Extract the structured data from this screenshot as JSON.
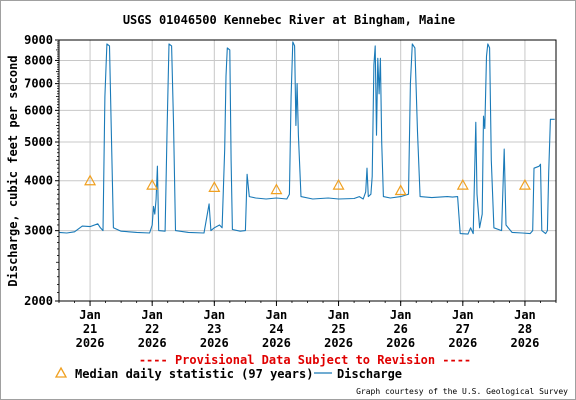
{
  "chart_data": {
    "type": "line",
    "title": "USGS 01046500 Kennebec River at Bingham, Maine",
    "ylabel": "Discharge, cubic feet per second",
    "xlabel": "",
    "y_scale": "log",
    "ylim": [
      2000,
      9000
    ],
    "y_ticks": [
      {
        "value": 2000,
        "label": "2000"
      },
      {
        "value": 3000,
        "label": "3000"
      },
      {
        "value": 4000,
        "label": "4000"
      },
      {
        "value": 5000,
        "label": "5000"
      },
      {
        "value": 6000,
        "label": "6000"
      },
      {
        "value": 7000,
        "label": "7000"
      },
      {
        "value": 8000,
        "label": "8000"
      },
      {
        "value": 9000,
        "label": "9000"
      }
    ],
    "xlim": [
      "2026-01-20 12:00",
      "2026-01-28 12:00"
    ],
    "x_ticks": [
      {
        "value": "2026-01-21",
        "month": "Jan",
        "day": "21",
        "year": "2026"
      },
      {
        "value": "2026-01-22",
        "month": "Jan",
        "day": "22",
        "year": "2026"
      },
      {
        "value": "2026-01-23",
        "month": "Jan",
        "day": "23",
        "year": "2026"
      },
      {
        "value": "2026-01-24",
        "month": "Jan",
        "day": "24",
        "year": "2026"
      },
      {
        "value": "2026-01-25",
        "month": "Jan",
        "day": "25",
        "year": "2026"
      },
      {
        "value": "2026-01-26",
        "month": "Jan",
        "day": "26",
        "year": "2026"
      },
      {
        "value": "2026-01-27",
        "month": "Jan",
        "day": "27",
        "year": "2026"
      },
      {
        "value": "2026-01-28",
        "month": "Jan",
        "day": "28",
        "year": "2026"
      }
    ],
    "grid": true,
    "series": [
      {
        "name": "Discharge",
        "color": "#1a7ab8",
        "points": [
          [
            "2026-01-20 12:00",
            2970
          ],
          [
            "2026-01-20 15:00",
            2960
          ],
          [
            "2026-01-20 18:00",
            2980
          ],
          [
            "2026-01-20 21:00",
            3080
          ],
          [
            "2026-01-21 00:00",
            3070
          ],
          [
            "2026-01-21 03:00",
            3120
          ],
          [
            "2026-01-21 04:00",
            3050
          ],
          [
            "2026-01-21 05:00",
            3000
          ],
          [
            "2026-01-21 05:45",
            6500
          ],
          [
            "2026-01-21 06:30",
            8800
          ],
          [
            "2026-01-21 07:30",
            8700
          ],
          [
            "2026-01-21 08:15",
            5200
          ],
          [
            "2026-01-21 09:00",
            3050
          ],
          [
            "2026-01-21 12:00",
            2990
          ],
          [
            "2026-01-21 18:00",
            2970
          ],
          [
            "2026-01-21 23:00",
            2960
          ],
          [
            "2026-01-22 00:00",
            3100
          ],
          [
            "2026-01-22 00:30",
            3450
          ],
          [
            "2026-01-22 01:00",
            3300
          ],
          [
            "2026-01-22 01:30",
            3600
          ],
          [
            "2026-01-22 02:00",
            4350
          ],
          [
            "2026-01-22 02:30",
            3000
          ],
          [
            "2026-01-22 05:00",
            2990
          ],
          [
            "2026-01-22 05:45",
            5400
          ],
          [
            "2026-01-22 06:30",
            8800
          ],
          [
            "2026-01-22 07:30",
            8700
          ],
          [
            "2026-01-22 08:15",
            5600
          ],
          [
            "2026-01-22 09:00",
            3000
          ],
          [
            "2026-01-22 14:00",
            2970
          ],
          [
            "2026-01-22 20:00",
            2960
          ],
          [
            "2026-01-22 22:00",
            3500
          ],
          [
            "2026-01-22 22:40",
            3000
          ],
          [
            "2026-01-23 00:00",
            3050
          ],
          [
            "2026-01-23 02:00",
            3100
          ],
          [
            "2026-01-23 03:00",
            3050
          ],
          [
            "2026-01-23 04:00",
            4800
          ],
          [
            "2026-01-23 04:30",
            7300
          ],
          [
            "2026-01-23 05:00",
            8600
          ],
          [
            "2026-01-23 06:00",
            8500
          ],
          [
            "2026-01-23 06:30",
            4500
          ],
          [
            "2026-01-23 07:00",
            3020
          ],
          [
            "2026-01-23 10:00",
            2990
          ],
          [
            "2026-01-23 12:00",
            3000
          ],
          [
            "2026-01-23 12:40",
            4150
          ],
          [
            "2026-01-23 13:30",
            3650
          ],
          [
            "2026-01-23 16:00",
            3620
          ],
          [
            "2026-01-23 20:00",
            3600
          ],
          [
            "2026-01-24 00:00",
            3620
          ],
          [
            "2026-01-24 04:00",
            3600
          ],
          [
            "2026-01-24 05:00",
            3700
          ],
          [
            "2026-01-24 05:40",
            6500
          ],
          [
            "2026-01-24 06:20",
            8900
          ],
          [
            "2026-01-24 07:00",
            8700
          ],
          [
            "2026-01-24 07:30",
            5500
          ],
          [
            "2026-01-24 08:00",
            7000
          ],
          [
            "2026-01-24 08:30",
            5200
          ],
          [
            "2026-01-24 09:30",
            3650
          ],
          [
            "2026-01-24 14:00",
            3600
          ],
          [
            "2026-01-24 20:00",
            3620
          ],
          [
            "2026-01-25 00:00",
            3600
          ],
          [
            "2026-01-25 06:00",
            3610
          ],
          [
            "2026-01-25 08:00",
            3650
          ],
          [
            "2026-01-25 09:30",
            3600
          ],
          [
            "2026-01-25 10:30",
            3750
          ],
          [
            "2026-01-25 11:00",
            4300
          ],
          [
            "2026-01-25 11:30",
            3650
          ],
          [
            "2026-01-25 12:30",
            3700
          ],
          [
            "2026-01-25 13:00",
            4100
          ],
          [
            "2026-01-25 13:40",
            7800
          ],
          [
            "2026-01-25 14:10",
            8700
          ],
          [
            "2026-01-25 14:40",
            5200
          ],
          [
            "2026-01-25 15:10",
            8100
          ],
          [
            "2026-01-25 15:40",
            6600
          ],
          [
            "2026-01-25 16:10",
            8100
          ],
          [
            "2026-01-25 16:40",
            5000
          ],
          [
            "2026-01-25 17:20",
            3650
          ],
          [
            "2026-01-25 20:00",
            3620
          ],
          [
            "2026-01-26 00:00",
            3650
          ],
          [
            "2026-01-26 03:00",
            3700
          ],
          [
            "2026-01-26 03:45",
            7000
          ],
          [
            "2026-01-26 04:30",
            8800
          ],
          [
            "2026-01-26 05:30",
            8600
          ],
          [
            "2026-01-26 06:30",
            5300
          ],
          [
            "2026-01-26 07:30",
            3650
          ],
          [
            "2026-01-26 12:00",
            3630
          ],
          [
            "2026-01-26 18:00",
            3650
          ],
          [
            "2026-01-26 20:00",
            3640
          ],
          [
            "2026-01-26 22:00",
            3650
          ],
          [
            "2026-01-26 23:00",
            2950
          ],
          [
            "2026-01-27 02:00",
            2940
          ],
          [
            "2026-01-27 03:00",
            3050
          ],
          [
            "2026-01-27 04:00",
            2950
          ],
          [
            "2026-01-27 05:00",
            5600
          ],
          [
            "2026-01-27 05:30",
            3700
          ],
          [
            "2026-01-27 06:30",
            3050
          ],
          [
            "2026-01-27 07:30",
            3300
          ],
          [
            "2026-01-27 08:00",
            5800
          ],
          [
            "2026-01-27 08:30",
            5400
          ],
          [
            "2026-01-27 09:10",
            8200
          ],
          [
            "2026-01-27 09:40",
            8800
          ],
          [
            "2026-01-27 10:20",
            8600
          ],
          [
            "2026-01-27 11:00",
            4500
          ],
          [
            "2026-01-27 12:00",
            3050
          ],
          [
            "2026-01-27 15:00",
            3000
          ],
          [
            "2026-01-27 16:00",
            4800
          ],
          [
            "2026-01-27 16:40",
            3100
          ],
          [
            "2026-01-27 19:00",
            2970
          ],
          [
            "2026-01-27 23:00",
            2960
          ],
          [
            "2026-01-28 02:00",
            2950
          ],
          [
            "2026-01-28 03:00",
            3000
          ],
          [
            "2026-01-28 03:30",
            4300
          ],
          [
            "2026-01-28 05:30",
            4350
          ],
          [
            "2026-01-28 06:00",
            4400
          ],
          [
            "2026-01-28 06:30",
            3000
          ],
          [
            "2026-01-28 08:00",
            2950
          ],
          [
            "2026-01-28 08:40",
            3000
          ],
          [
            "2026-01-28 09:10",
            4200
          ],
          [
            "2026-01-28 09:50",
            5700
          ],
          [
            "2026-01-28 11:30",
            5700
          ]
        ]
      },
      {
        "name": "Median daily statistic (97 years)",
        "color": "#f0a020",
        "marker": "triangle",
        "points": [
          [
            "2026-01-21 00:00",
            4000
          ],
          [
            "2026-01-22 00:00",
            3900
          ],
          [
            "2026-01-23 00:00",
            3850
          ],
          [
            "2026-01-24 00:00",
            3800
          ],
          [
            "2026-01-25 00:00",
            3900
          ],
          [
            "2026-01-26 00:00",
            3780
          ],
          [
            "2026-01-27 00:00",
            3900
          ],
          [
            "2026-01-28 00:00",
            3900
          ]
        ]
      }
    ],
    "provisional_note": "---- Provisional Data Subject to Revision ----",
    "legend": [
      {
        "label": "Median daily statistic (97 years)",
        "symbol": "triangle",
        "color": "#f0a020"
      },
      {
        "label": "Discharge",
        "symbol": "line",
        "color": "#1a7ab8"
      }
    ],
    "credit": "Graph courtesy of the U.S. Geological Survey"
  }
}
